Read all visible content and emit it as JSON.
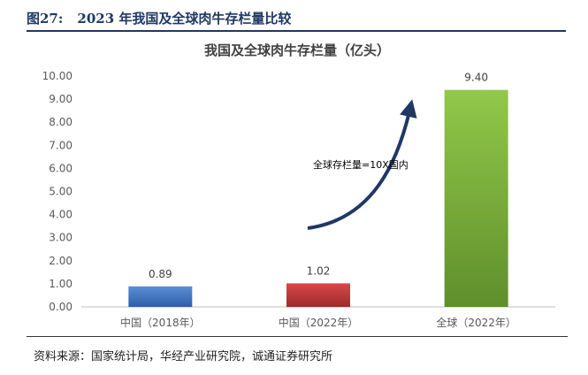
{
  "figure": {
    "number": "图27:",
    "title": "2023 年我国及全球肉牛存栏量比较"
  },
  "source": "资料来源：国家统计局，华经产业研究院，诚通证券研究所",
  "chart_data": {
    "type": "bar",
    "title": "我国及全球肉牛存栏量（亿头）",
    "categories": [
      "中国（2018年）",
      "中国（2022年）",
      "全球（2022年）"
    ],
    "values": [
      0.89,
      1.02,
      9.4
    ],
    "value_labels": [
      "0.89",
      "1.02",
      "9.40"
    ],
    "colors": [
      "#4472c4",
      "#c0393b",
      "#7cae3c"
    ],
    "ylim": [
      0,
      10
    ],
    "yticks": [
      "0.00",
      "1.00",
      "2.00",
      "3.00",
      "4.00",
      "5.00",
      "6.00",
      "7.00",
      "8.00",
      "9.00",
      "10.00"
    ],
    "grid": false,
    "legend": "none",
    "annotation": {
      "text": "全球存栏量=10X国内",
      "arrow_color": "#1f3864"
    }
  }
}
